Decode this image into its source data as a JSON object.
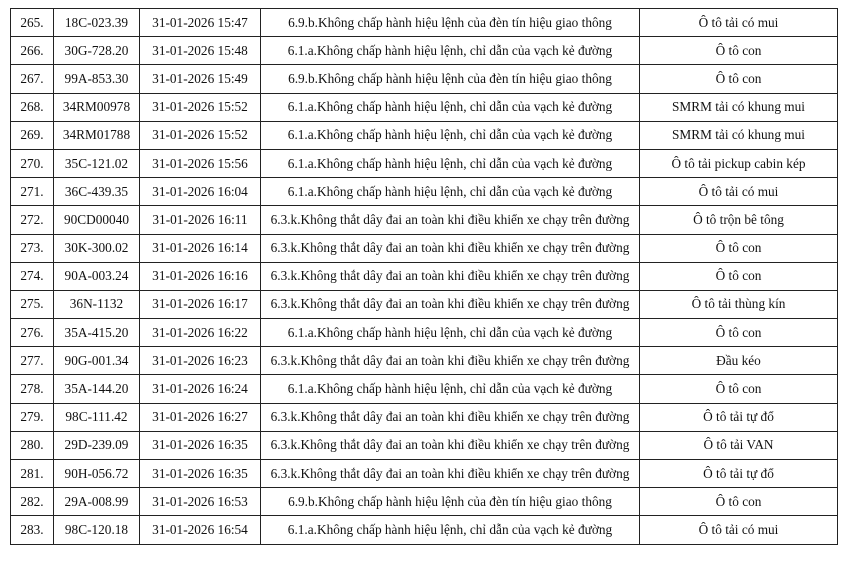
{
  "table": {
    "rows": [
      [
        "265.",
        "18C-023.39",
        "31-01-2026 15:47",
        "6.9.b.Không chấp hành hiệu lệnh của đèn tín hiệu giao thông",
        "Ô tô tải có mui"
      ],
      [
        "266.",
        "30G-728.20",
        "31-01-2026 15:48",
        "6.1.a.Không chấp hành hiệu lệnh, chỉ dẫn của vạch kẻ đường",
        "Ô tô con"
      ],
      [
        "267.",
        "99A-853.30",
        "31-01-2026 15:49",
        "6.9.b.Không chấp hành hiệu lệnh của đèn tín hiệu giao thông",
        "Ô tô con"
      ],
      [
        "268.",
        "34RM00978",
        "31-01-2026 15:52",
        "6.1.a.Không chấp hành hiệu lệnh, chỉ dẫn của vạch kẻ đường",
        "SMRM tải có khung mui"
      ],
      [
        "269.",
        "34RM01788",
        "31-01-2026 15:52",
        "6.1.a.Không chấp hành hiệu lệnh, chỉ dẫn của vạch kẻ đường",
        "SMRM tải có khung mui"
      ],
      [
        "270.",
        "35C-121.02",
        "31-01-2026 15:56",
        "6.1.a.Không chấp hành hiệu lệnh, chỉ dẫn của vạch kẻ đường",
        "Ô tô tải pickup cabin kép"
      ],
      [
        "271.",
        "36C-439.35",
        "31-01-2026 16:04",
        "6.1.a.Không chấp hành hiệu lệnh, chỉ dẫn của vạch kẻ đường",
        "Ô tô tải có mui"
      ],
      [
        "272.",
        "90CD00040",
        "31-01-2026 16:11",
        "6.3.k.Không thắt dây đai an toàn khi điều khiển xe chạy trên đường",
        "Ô tô trộn bê tông"
      ],
      [
        "273.",
        "30K-300.02",
        "31-01-2026 16:14",
        "6.3.k.Không thắt dây đai an toàn khi điều khiển xe chạy trên đường",
        "Ô tô con"
      ],
      [
        "274.",
        "90A-003.24",
        "31-01-2026 16:16",
        "6.3.k.Không thắt dây đai an toàn khi điều khiển xe chạy trên đường",
        "Ô tô con"
      ],
      [
        "275.",
        "36N-1132",
        "31-01-2026 16:17",
        "6.3.k.Không thắt dây đai an toàn khi điều khiển xe chạy trên đường",
        "Ô tô tải thùng kín"
      ],
      [
        "276.",
        "35A-415.20",
        "31-01-2026 16:22",
        "6.1.a.Không chấp hành hiệu lệnh, chỉ dẫn của vạch kẻ đường",
        "Ô tô con"
      ],
      [
        "277.",
        "90G-001.34",
        "31-01-2026 16:23",
        "6.3.k.Không thắt dây đai an toàn khi điều khiển xe chạy trên đường",
        "Đầu kéo"
      ],
      [
        "278.",
        "35A-144.20",
        "31-01-2026 16:24",
        "6.1.a.Không chấp hành hiệu lệnh, chỉ dẫn của vạch kẻ đường",
        "Ô tô con"
      ],
      [
        "279.",
        "98C-111.42",
        "31-01-2026 16:27",
        "6.3.k.Không thắt dây đai an toàn khi điều khiển xe chạy trên đường",
        "Ô tô tải tự đổ"
      ],
      [
        "280.",
        "29D-239.09",
        "31-01-2026 16:35",
        "6.3.k.Không thắt dây đai an toàn khi điều khiển xe chạy trên đường",
        "Ô tô tải VAN"
      ],
      [
        "281.",
        "90H-056.72",
        "31-01-2026 16:35",
        "6.3.k.Không thắt dây đai an toàn khi điều khiển xe chạy trên đường",
        "Ô tô tải tự đổ"
      ],
      [
        "282.",
        "29A-008.99",
        "31-01-2026 16:53",
        "6.9.b.Không chấp hành hiệu lệnh của đèn tín hiệu giao thông",
        "Ô tô con"
      ],
      [
        "283.",
        "98C-120.18",
        "31-01-2026 16:54",
        "6.1.a.Không chấp hành hiệu lệnh, chỉ dẫn của vạch kẻ đường",
        "Ô tô tải có mui"
      ]
    ]
  }
}
